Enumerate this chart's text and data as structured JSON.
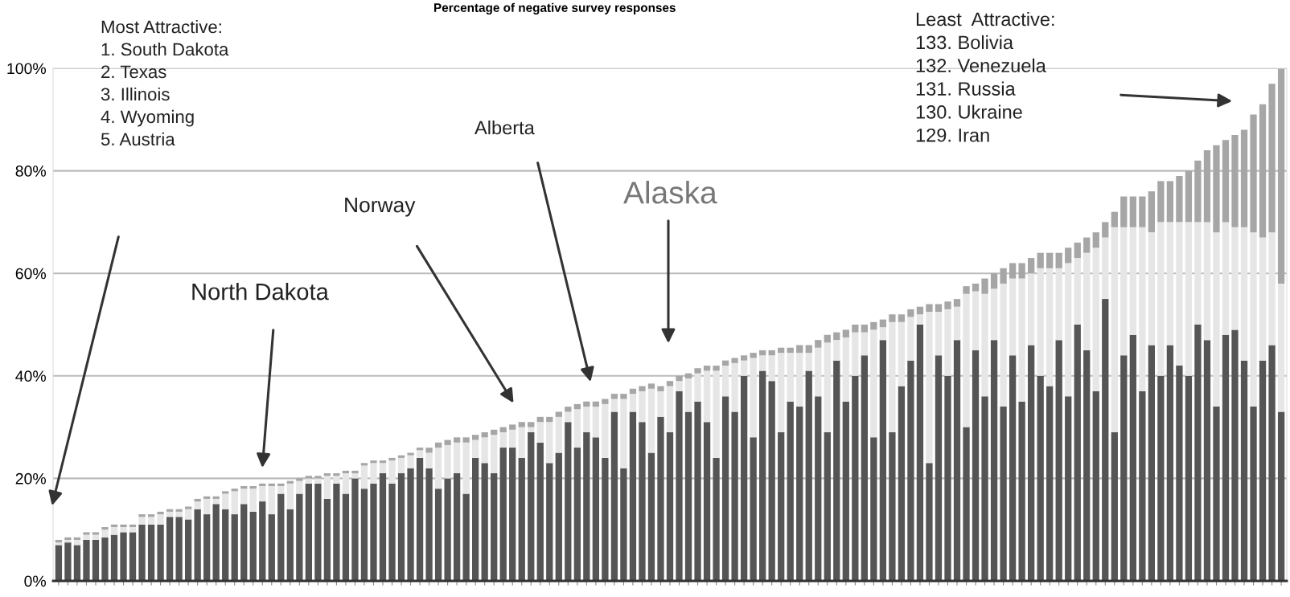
{
  "chart_data": {
    "type": "bar",
    "stacked": true,
    "title": "Percentage of negative survey responses",
    "categories": [
      null,
      null,
      null,
      null,
      null,
      null,
      null,
      null,
      null,
      null,
      null,
      null,
      null,
      null,
      null,
      null,
      null,
      null,
      null,
      null,
      null,
      null,
      null,
      null,
      null,
      null,
      null,
      null,
      null,
      null,
      null,
      null,
      null,
      null,
      null,
      null,
      null,
      null,
      null,
      null,
      null,
      null,
      null,
      null,
      null,
      null,
      null,
      null,
      null,
      null,
      null,
      null,
      null,
      null,
      null,
      null,
      null,
      null,
      null,
      null,
      null,
      null,
      null,
      null,
      null,
      null,
      null,
      null,
      null,
      null,
      null,
      null,
      null,
      null,
      null,
      null,
      null,
      null,
      null,
      null,
      null,
      null,
      null,
      null,
      null,
      null,
      null,
      null,
      null,
      null,
      null,
      null,
      null,
      null,
      null,
      null,
      null,
      null,
      null,
      null,
      null,
      null,
      null,
      null,
      null,
      null,
      null,
      null,
      null,
      null,
      null,
      null,
      null,
      null,
      null,
      null,
      null,
      null,
      null,
      null,
      null,
      null,
      null,
      null,
      null,
      null,
      null,
      null,
      null,
      null,
      null,
      null,
      null
    ],
    "series": [
      {
        "color": "#555555",
        "values": [
          7,
          7.5,
          7,
          8,
          8,
          8.5,
          9,
          9.5,
          9.5,
          11,
          11,
          11,
          12.5,
          12.5,
          12,
          14,
          13,
          15,
          14,
          13,
          15,
          13.5,
          15.5,
          13,
          17,
          14,
          17,
          19,
          19,
          16,
          19,
          17,
          20,
          18,
          19,
          21,
          19,
          21,
          22,
          24,
          22,
          18,
          20,
          21,
          17,
          24,
          23,
          21,
          26,
          26,
          24,
          29,
          27,
          23,
          25,
          31,
          26,
          29,
          28,
          24,
          33,
          22,
          33,
          31,
          25,
          32,
          29,
          37,
          33,
          35,
          31,
          24,
          36,
          33,
          40,
          28,
          41,
          39,
          29,
          35,
          34,
          41,
          36,
          29,
          43,
          35,
          40,
          44,
          28,
          47,
          29,
          38,
          43,
          50,
          23,
          44,
          40,
          47,
          30,
          45,
          36,
          47,
          34,
          44,
          35,
          46,
          40,
          38,
          47,
          36,
          50,
          45,
          37,
          55,
          29,
          44,
          48,
          37,
          46,
          40,
          46,
          42,
          40,
          50,
          47,
          34,
          48,
          49,
          43,
          34,
          43,
          46,
          33
        ]
      },
      {
        "color": "#e6e6e6",
        "values": [
          0.5,
          0.5,
          1,
          1,
          1,
          1.5,
          1.5,
          1,
          1,
          1.5,
          1.5,
          2,
          1,
          1,
          2,
          1.5,
          3,
          1,
          3,
          4.5,
          3,
          4.5,
          3,
          5.5,
          1.5,
          5,
          2.5,
          1,
          1,
          4.5,
          1.5,
          4,
          1,
          4.5,
          4,
          2,
          4.5,
          3,
          2.5,
          1.5,
          3,
          8,
          6.5,
          6,
          10,
          3.5,
          5,
          7.5,
          3,
          3.5,
          6,
          1,
          4,
          8,
          7,
          2,
          7.5,
          5,
          6,
          10.5,
          2.5,
          13.5,
          3.5,
          6,
          12.5,
          5,
          9,
          2,
          6.5,
          5.5,
          10,
          17,
          6,
          9.5,
          3,
          15.5,
          3,
          5,
          15.5,
          9.5,
          10.5,
          3.5,
          9.5,
          17.5,
          4,
          12.5,
          8.5,
          4.5,
          21,
          2.5,
          21.5,
          12.5,
          8.5,
          2,
          29.5,
          8.5,
          13,
          6.5,
          26,
          11.5,
          20,
          10,
          24,
          15,
          24,
          14,
          21,
          23,
          14,
          26,
          13,
          19,
          28,
          12,
          40,
          25,
          21,
          32,
          22,
          30,
          24,
          28,
          30,
          20,
          23,
          34,
          22,
          20,
          26,
          34,
          24,
          22,
          25
        ]
      },
      {
        "color": "#a6a6a6",
        "values": [
          0.5,
          0.5,
          0.5,
          0.5,
          0.5,
          0.5,
          0.5,
          0.5,
          0.5,
          0.5,
          0.5,
          0.5,
          0.5,
          0.5,
          0.5,
          0.5,
          0.5,
          0.5,
          0.5,
          0.5,
          0.5,
          0.5,
          0.5,
          0.5,
          0.5,
          0.5,
          0.5,
          0.5,
          0.5,
          0.5,
          0.5,
          0.5,
          0.5,
          0.5,
          0.5,
          0.5,
          0.5,
          0.5,
          0.5,
          0.5,
          1,
          1,
          1,
          1,
          1,
          1,
          1,
          1,
          1,
          1,
          1,
          1,
          1,
          1,
          1,
          1,
          1,
          1,
          1,
          1,
          1,
          1,
          1,
          1,
          1,
          1,
          1,
          1,
          1,
          1,
          1,
          1,
          1,
          1,
          1,
          1,
          1,
          1,
          1,
          1,
          1.5,
          1.5,
          1.5,
          1.5,
          1.5,
          1.5,
          1.5,
          1.5,
          1.5,
          1.5,
          1.5,
          1.5,
          1.5,
          1.5,
          1.5,
          1.5,
          1.5,
          1.5,
          1.5,
          1.5,
          3,
          3,
          3,
          3,
          3,
          3,
          3,
          3,
          3,
          3,
          3,
          3,
          3,
          3,
          3,
          6,
          6,
          6,
          8,
          8,
          8,
          9,
          10,
          12,
          14,
          17,
          16,
          18,
          19,
          23,
          26,
          29,
          42
        ]
      }
    ],
    "ylim": [
      0,
      100
    ],
    "yticks": [
      {
        "value": 0,
        "label": "0%"
      },
      {
        "value": 20,
        "label": "20%"
      },
      {
        "value": 40,
        "label": "40%"
      },
      {
        "value": 60,
        "label": "60%"
      },
      {
        "value": 80,
        "label": "80%"
      },
      {
        "value": 100,
        "label": "100%"
      }
    ],
    "grid": "y",
    "annotations": [
      "Most Attractive:\n1. South Dakota\n2. Texas\n3. Illinois\n4. Wyoming\n5. Austria",
      "North Dakota",
      "Norway",
      "Alberta",
      "Alaska",
      "Least  Attractive:\n133. Bolivia\n132. Venezuela\n131. Russia\n130. Ukraine\n129. Iran"
    ]
  }
}
